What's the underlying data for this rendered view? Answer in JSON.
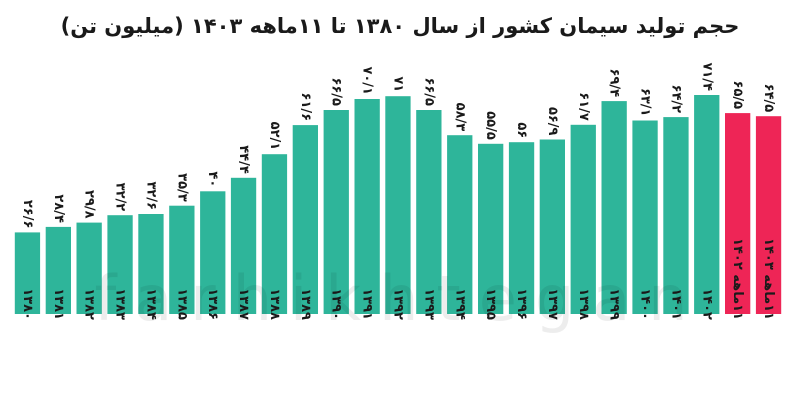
{
  "chart_data": {
    "type": "bar",
    "title": "حجم تولید سیمان کشور از سال ۱۳۸۰ تا ۱۱ماهه ۱۴۰۳ (میلیون تن)",
    "categories": [
      "۱۳۸۰",
      "۱۳۸۱",
      "۱۳۸۲",
      "۱۳۸۳",
      "۱۳۸۴",
      "۱۳۸۵",
      "۱۳۸۶",
      "۱۳۸۷",
      "۱۳۸۸",
      "۱۳۸۹",
      "۱۳۹۰",
      "۱۳۹۱",
      "۱۳۹۲",
      "۱۳۹۳",
      "۱۳۹۴",
      "۱۳۹۵",
      "۱۳۹۶",
      "۱۳۹۷",
      "۱۳۹۸",
      "۱۳۹۹",
      "۱۴۰۰",
      "۱۴۰۱",
      "۱۴۰۲",
      "۱۱ماهه ۱۴۰۲",
      "۱۱ماهه ۱۴۰۳"
    ],
    "value_labels": [
      "۲۶/۶",
      "۲۸/۴",
      "۲۹/۸",
      "۳۲/۲",
      "۳۲/۶",
      "۳۵/۳",
      "۴۰",
      "۴۴/۴",
      "۵۲/۱",
      "۶۱/۶",
      "۶۶/۵",
      "۷۰/۱",
      "۷۱",
      "۶۶/۵",
      "۵۸/۳",
      "۵۵/۵",
      "۵۶",
      "۵۶/۹",
      "۶۱/۷",
      "۶۹/۴",
      "۶۳/۱",
      "۶۴/۲",
      "۷۱/۴",
      "۶۵/۵",
      "۶۴/۵"
    ],
    "values": [
      26.6,
      28.4,
      29.8,
      32.2,
      32.6,
      35.3,
      40,
      44.4,
      52.1,
      61.6,
      66.5,
      70.1,
      71,
      66.5,
      58.3,
      55.5,
      56,
      56.9,
      61.7,
      69.4,
      63.1,
      64.2,
      71.4,
      65.5,
      64.5
    ],
    "highlight": [
      false,
      false,
      false,
      false,
      false,
      false,
      false,
      false,
      false,
      false,
      false,
      false,
      false,
      false,
      false,
      false,
      false,
      false,
      false,
      false,
      false,
      false,
      false,
      true,
      true
    ],
    "ylim": [
      0,
      75
    ],
    "grid": false,
    "colors": {
      "bar": "#2eb59a",
      "highlight": "#ee2556",
      "label": "#1a1a1a"
    }
  },
  "watermark": "farhikhtegan"
}
